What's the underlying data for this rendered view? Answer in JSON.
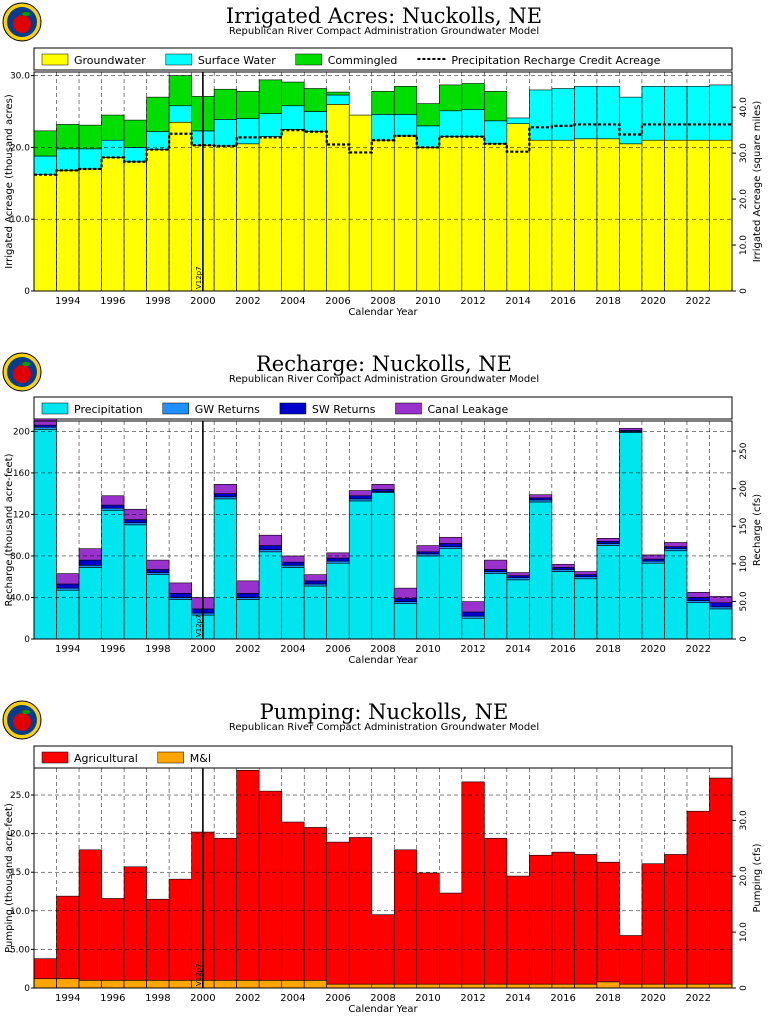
{
  "years": [
    "1993",
    "1994",
    "1995",
    "1996",
    "1997",
    "1998",
    "1999",
    "2000",
    "2001",
    "2002",
    "2003",
    "2004",
    "2005",
    "2006",
    "2007",
    "2008",
    "2009",
    "2010",
    "2011",
    "2012",
    "2013",
    "2014",
    "2015",
    "2016",
    "2017",
    "2018",
    "2019",
    "2020",
    "2021",
    "2022",
    "2023"
  ],
  "chart_data": [
    {
      "type": "bar",
      "stacked": true,
      "title": "Irrigated  Acres:  Nuckolls,  NE",
      "subtitle": "Republican  River  Compact  Administration  Groundwater  Model",
      "xlabel": "Calendar  Year",
      "ylabel": "Irrigated  Acreage  (thousand  acres)",
      "y2label": "Irrigated  Acreage  (square  miles)",
      "ylim": [
        0,
        30.5
      ],
      "yticks": [
        {
          "v": 0,
          "t": "0"
        },
        {
          "v": 10,
          "t": "10.0"
        },
        {
          "v": 20,
          "t": "20.0"
        },
        {
          "v": 30,
          "t": "30.0"
        }
      ],
      "y2ticks": [
        {
          "v": 0,
          "t": "0"
        },
        {
          "v": 6.4,
          "t": "10.0"
        },
        {
          "v": 12.8,
          "t": "20.0"
        },
        {
          "v": 19.2,
          "t": "30.0"
        },
        {
          "v": 25.6,
          "t": "40.0"
        }
      ],
      "xticks": [
        "1994",
        "1996",
        "1998",
        "2000",
        "2002",
        "2004",
        "2006",
        "2008",
        "2010",
        "2012",
        "2014",
        "2016",
        "2018",
        "2020",
        "2022"
      ],
      "vline": {
        "year": 2000.5,
        "label": "V12p7"
      },
      "series": [
        {
          "name": "Groundwater",
          "color": "#ffff00",
          "values": [
            16.2,
            16.8,
            17.0,
            18.6,
            18.0,
            19.7,
            23.5,
            20.3,
            20.2,
            20.5,
            21.5,
            22.5,
            22.2,
            26.0,
            24.5,
            21.0,
            21.6,
            20.0,
            21.5,
            21.5,
            20.5,
            23.3,
            21.0,
            21.0,
            21.2,
            21.2,
            20.5,
            21.0,
            21.0,
            21.0,
            21.0
          ]
        },
        {
          "name": "Surface Water",
          "color": "#00ffff",
          "values": [
            2.6,
            3.0,
            2.8,
            2.4,
            2.0,
            2.5,
            2.3,
            2.0,
            3.7,
            3.5,
            3.2,
            3.3,
            2.8,
            1.3,
            0,
            3.6,
            3.0,
            3.0,
            3.6,
            3.8,
            3.2,
            0.8,
            7.0,
            7.2,
            7.3,
            7.3,
            6.5,
            7.5,
            7.5,
            7.5,
            7.7
          ]
        },
        {
          "name": "Commingled",
          "color": "#00dd00",
          "values": [
            3.5,
            3.4,
            3.3,
            3.5,
            3.8,
            4.8,
            4.2,
            4.8,
            4.2,
            3.8,
            4.7,
            3.3,
            3.2,
            0.4,
            0,
            3.2,
            3.9,
            3.1,
            3.6,
            3.6,
            4.1,
            0,
            0,
            0,
            0,
            0,
            0,
            0,
            0,
            0,
            0
          ]
        }
      ],
      "line": {
        "name": "Precipitation  Recharge  Credit  Acreage",
        "values": [
          16.2,
          16.8,
          17.0,
          18.6,
          18.0,
          19.7,
          21.9,
          20.3,
          20.2,
          21.4,
          21.4,
          22.4,
          22.2,
          20.4,
          19.3,
          21.0,
          21.6,
          20.0,
          21.5,
          21.5,
          20.5,
          19.4,
          22.8,
          23.0,
          23.2,
          23.2,
          21.8,
          23.2,
          23.2,
          23.2,
          23.2
        ]
      },
      "legend_position": "top"
    },
    {
      "type": "bar",
      "stacked": true,
      "title": "Recharge:  Nuckolls,  NE",
      "subtitle": "Republican  River  Compact  Administration  Groundwater  Model",
      "xlabel": "Calendar  Year",
      "ylabel": "Recharge  (thousand  acre-feet)",
      "y2label": "Recharge  (cfs)",
      "ylim": [
        0,
        210
      ],
      "yticks": [
        {
          "v": 0,
          "t": "0"
        },
        {
          "v": 40,
          "t": "40.0"
        },
        {
          "v": 80,
          "t": "80.0"
        },
        {
          "v": 120,
          "t": "120"
        },
        {
          "v": 160,
          "t": "160"
        },
        {
          "v": 200,
          "t": "200"
        }
      ],
      "y2ticks": [
        {
          "v": 0,
          "t": "0"
        },
        {
          "v": 36.2,
          "t": "50.0"
        },
        {
          "v": 72.4,
          "t": "100"
        },
        {
          "v": 108.6,
          "t": "150"
        },
        {
          "v": 144.8,
          "t": "200"
        },
        {
          "v": 181,
          "t": "250"
        }
      ],
      "xticks": [
        "1994",
        "1996",
        "1998",
        "2000",
        "2002",
        "2004",
        "2006",
        "2008",
        "2010",
        "2012",
        "2014",
        "2016",
        "2018",
        "2020",
        "2022"
      ],
      "vline": {
        "year": 2000.5,
        "label": "V12p7"
      },
      "series": [
        {
          "name": "Precipitation",
          "color": "#00e5ee",
          "values": [
            202,
            47,
            69,
            124,
            110,
            62,
            38,
            23,
            135,
            38,
            84,
            69,
            51,
            73,
            133,
            141,
            34,
            80,
            87,
            20,
            63,
            57,
            132,
            65,
            58,
            90,
            199,
            73,
            85,
            35,
            29
          ]
        },
        {
          "name": "GW  Returns",
          "color": "#1e90ff",
          "values": [
            2,
            2,
            2,
            2,
            2,
            2,
            2,
            2,
            2,
            2,
            2,
            2,
            2,
            2,
            2,
            1,
            2,
            2,
            2,
            2,
            2,
            2,
            2,
            2,
            2,
            2,
            1,
            2,
            2,
            2,
            2
          ]
        },
        {
          "name": "SW  Returns",
          "color": "#0000cd",
          "values": [
            2,
            4,
            5,
            3,
            3,
            3,
            4,
            4,
            3,
            4,
            4,
            3,
            3,
            3,
            3,
            2,
            3,
            2,
            3,
            4,
            2,
            2,
            2,
            2,
            2,
            2,
            1,
            2,
            2,
            3,
            4
          ]
        },
        {
          "name": "Canal  Leakage",
          "color": "#9932cc",
          "values": [
            6,
            10,
            11,
            9,
            10,
            9,
            10,
            11,
            9,
            12,
            10,
            6,
            6,
            5,
            5,
            5,
            10,
            6,
            6,
            10,
            9,
            3,
            3,
            3,
            3,
            3,
            2,
            4,
            4,
            5,
            6
          ]
        }
      ],
      "legend_position": "top"
    },
    {
      "type": "bar",
      "stacked": true,
      "title": "Pumping:  Nuckolls,  NE",
      "subtitle": "Republican  River  Compact  Administration  Groundwater  Model",
      "xlabel": "Calendar  Year",
      "ylabel": "Pumping  (thousand  acre-feet)",
      "y2label": "Pumping  (cfs)",
      "ylim": [
        0,
        28.5
      ],
      "yticks": [
        {
          "v": 0,
          "t": "0"
        },
        {
          "v": 5,
          "t": "5.00"
        },
        {
          "v": 10,
          "t": "10.0"
        },
        {
          "v": 15,
          "t": "15.0"
        },
        {
          "v": 20,
          "t": "20.0"
        },
        {
          "v": 25,
          "t": "25.0"
        }
      ],
      "y2ticks": [
        {
          "v": 0,
          "t": "0"
        },
        {
          "v": 7.24,
          "t": "10.0"
        },
        {
          "v": 14.48,
          "t": "20.0"
        },
        {
          "v": 21.72,
          "t": "30.0"
        }
      ],
      "xticks": [
        "1994",
        "1996",
        "1998",
        "2000",
        "2002",
        "2004",
        "2006",
        "2008",
        "2010",
        "2012",
        "2014",
        "2016",
        "2018",
        "2020",
        "2022"
      ],
      "vline": {
        "year": 2000.5,
        "label": "V12p7"
      },
      "series": [
        {
          "name": "M&I",
          "color": "#ffa500",
          "values": [
            1.2,
            1.2,
            1.0,
            1.0,
            1.0,
            1.0,
            1.0,
            1.0,
            1.0,
            1.0,
            1.0,
            1.0,
            1.0,
            0.5,
            0.5,
            0.5,
            0.5,
            0.5,
            0.5,
            0.5,
            0.5,
            0.5,
            0.5,
            0.5,
            0.5,
            0.8,
            0.5,
            0.5,
            0.5,
            0.5,
            0.5
          ]
        },
        {
          "name": "Agricultural",
          "color": "#ff0000",
          "values": [
            2.6,
            10.7,
            16.9,
            10.6,
            14.7,
            10.5,
            13.1,
            19.2,
            18.4,
            27.2,
            24.5,
            20.5,
            19.8,
            18.4,
            19.0,
            9.0,
            17.4,
            14.4,
            11.8,
            26.2,
            18.9,
            14.0,
            16.7,
            17.1,
            16.8,
            15.5,
            6.3,
            15.6,
            16.8,
            22.4,
            26.7
          ]
        }
      ],
      "legend_position": "top"
    }
  ]
}
